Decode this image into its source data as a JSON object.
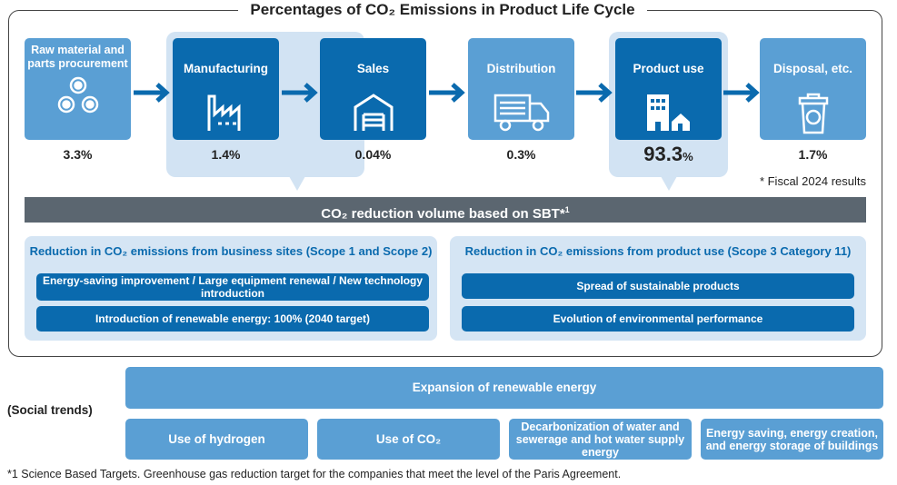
{
  "title": "Percentages of CO₂ Emissions in Product Life Cycle",
  "stages": [
    {
      "label": "Raw material and parts procurement",
      "percent": "3.3%",
      "icon": "circles-icon"
    },
    {
      "label": "Manufacturing",
      "percent": "1.4%",
      "icon": "factory-icon"
    },
    {
      "label": "Sales",
      "percent": "0.04%",
      "icon": "warehouse-icon"
    },
    {
      "label": "Distribution",
      "percent": "0.3%",
      "icon": "truck-icon"
    },
    {
      "label": "Product use",
      "percent": "93.3",
      "percent_unit": "%",
      "icon": "building-house-icon"
    },
    {
      "label": "Disposal, etc.",
      "percent": "1.7%",
      "icon": "recycle-bin-icon"
    }
  ],
  "fiscal_note": "* Fiscal 2024 results",
  "sbt_bar": "CO₂ reduction volume based on SBT*",
  "sbt_sup": "1",
  "left_panel": {
    "title": "Reduction in CO₂ emissions from business sites (Scope 1 and Scope 2)",
    "items": [
      "Energy-saving improvement / Large equipment renewal / New technology introduction",
      "Introduction of renewable energy: 100% (2040 target)"
    ]
  },
  "right_panel": {
    "title": "Reduction in CO₂ emissions from product use (Scope 3 Category 11)",
    "items": [
      "Spread of sustainable products",
      "Evolution of environmental performance"
    ]
  },
  "social": {
    "label": "(Social trends)",
    "main": "Expansion of renewable energy",
    "items": [
      "Use of hydrogen",
      "Use of CO₂",
      "Decarbonization of water and sewerage and hot water supply energy",
      "Energy saving, energy creation, and energy storage of buildings"
    ]
  },
  "footnote": "*1 Science Based Targets. Greenhouse gas reduction target for the companies that meet the level of the Paris Agreement.",
  "colors": {
    "light_blue": "#5a9fd4",
    "dark_blue": "#0a6aae",
    "highlight": "#d2e3f3",
    "gray_bar": "#5b6670"
  }
}
